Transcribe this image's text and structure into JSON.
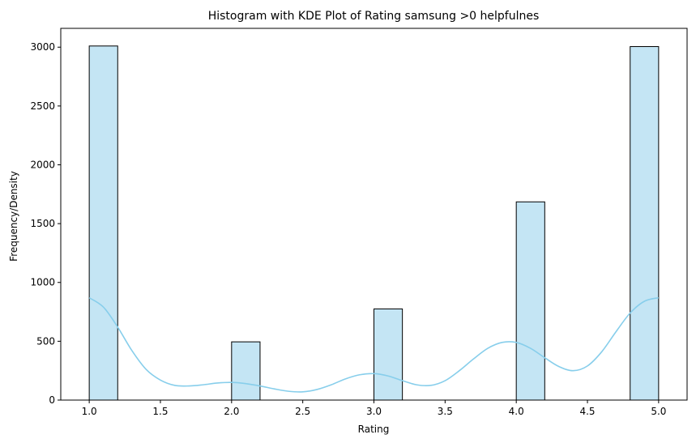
{
  "chart_data": {
    "type": "bar",
    "title": "Histogram with KDE Plot of Rating samsung >0 helpfulnes",
    "xlabel": "Rating",
    "ylabel": "Frequency/Density",
    "xlim": [
      0.8,
      5.2
    ],
    "ylim": [
      0,
      3160
    ],
    "xticks": [
      1.0,
      1.5,
      2.0,
      2.5,
      3.0,
      3.5,
      4.0,
      4.5,
      5.0
    ],
    "xtick_labels": [
      "1.0",
      "1.5",
      "2.0",
      "2.5",
      "3.0",
      "3.5",
      "4.0",
      "4.5",
      "5.0"
    ],
    "yticks": [
      0,
      500,
      1000,
      1500,
      2000,
      2500,
      3000
    ],
    "ytick_labels": [
      "0",
      "500",
      "1000",
      "1500",
      "2000",
      "2500",
      "3000"
    ],
    "grid": false,
    "bins": [
      {
        "x0": 1.0,
        "x1": 1.2,
        "count": 3010
      },
      {
        "x0": 2.0,
        "x1": 2.2,
        "count": 495
      },
      {
        "x0": 3.0,
        "x1": 3.2,
        "count": 775
      },
      {
        "x0": 4.0,
        "x1": 4.2,
        "count": 1685
      },
      {
        "x0": 4.8,
        "x1": 5.0,
        "count": 3005
      }
    ],
    "kde": {
      "x": [
        1.0,
        1.1,
        1.2,
        1.3,
        1.4,
        1.5,
        1.6,
        1.7,
        1.8,
        1.9,
        2.0,
        2.1,
        2.2,
        2.3,
        2.4,
        2.5,
        2.6,
        2.7,
        2.8,
        2.9,
        3.0,
        3.1,
        3.2,
        3.3,
        3.4,
        3.5,
        3.6,
        3.7,
        3.8,
        3.9,
        4.0,
        4.1,
        4.2,
        4.3,
        4.4,
        4.5,
        4.6,
        4.7,
        4.8,
        4.9,
        5.0
      ],
      "y": [
        870,
        790,
        620,
        420,
        260,
        170,
        125,
        120,
        130,
        145,
        150,
        140,
        120,
        95,
        75,
        70,
        90,
        130,
        180,
        215,
        225,
        205,
        165,
        130,
        125,
        165,
        250,
        350,
        440,
        490,
        490,
        440,
        360,
        285,
        250,
        290,
        410,
        580,
        740,
        840,
        870
      ]
    },
    "colors": {
      "bar_fill": "#c4e5f4",
      "bar_edge": "#000000",
      "kde_line": "#87ceeb"
    }
  }
}
